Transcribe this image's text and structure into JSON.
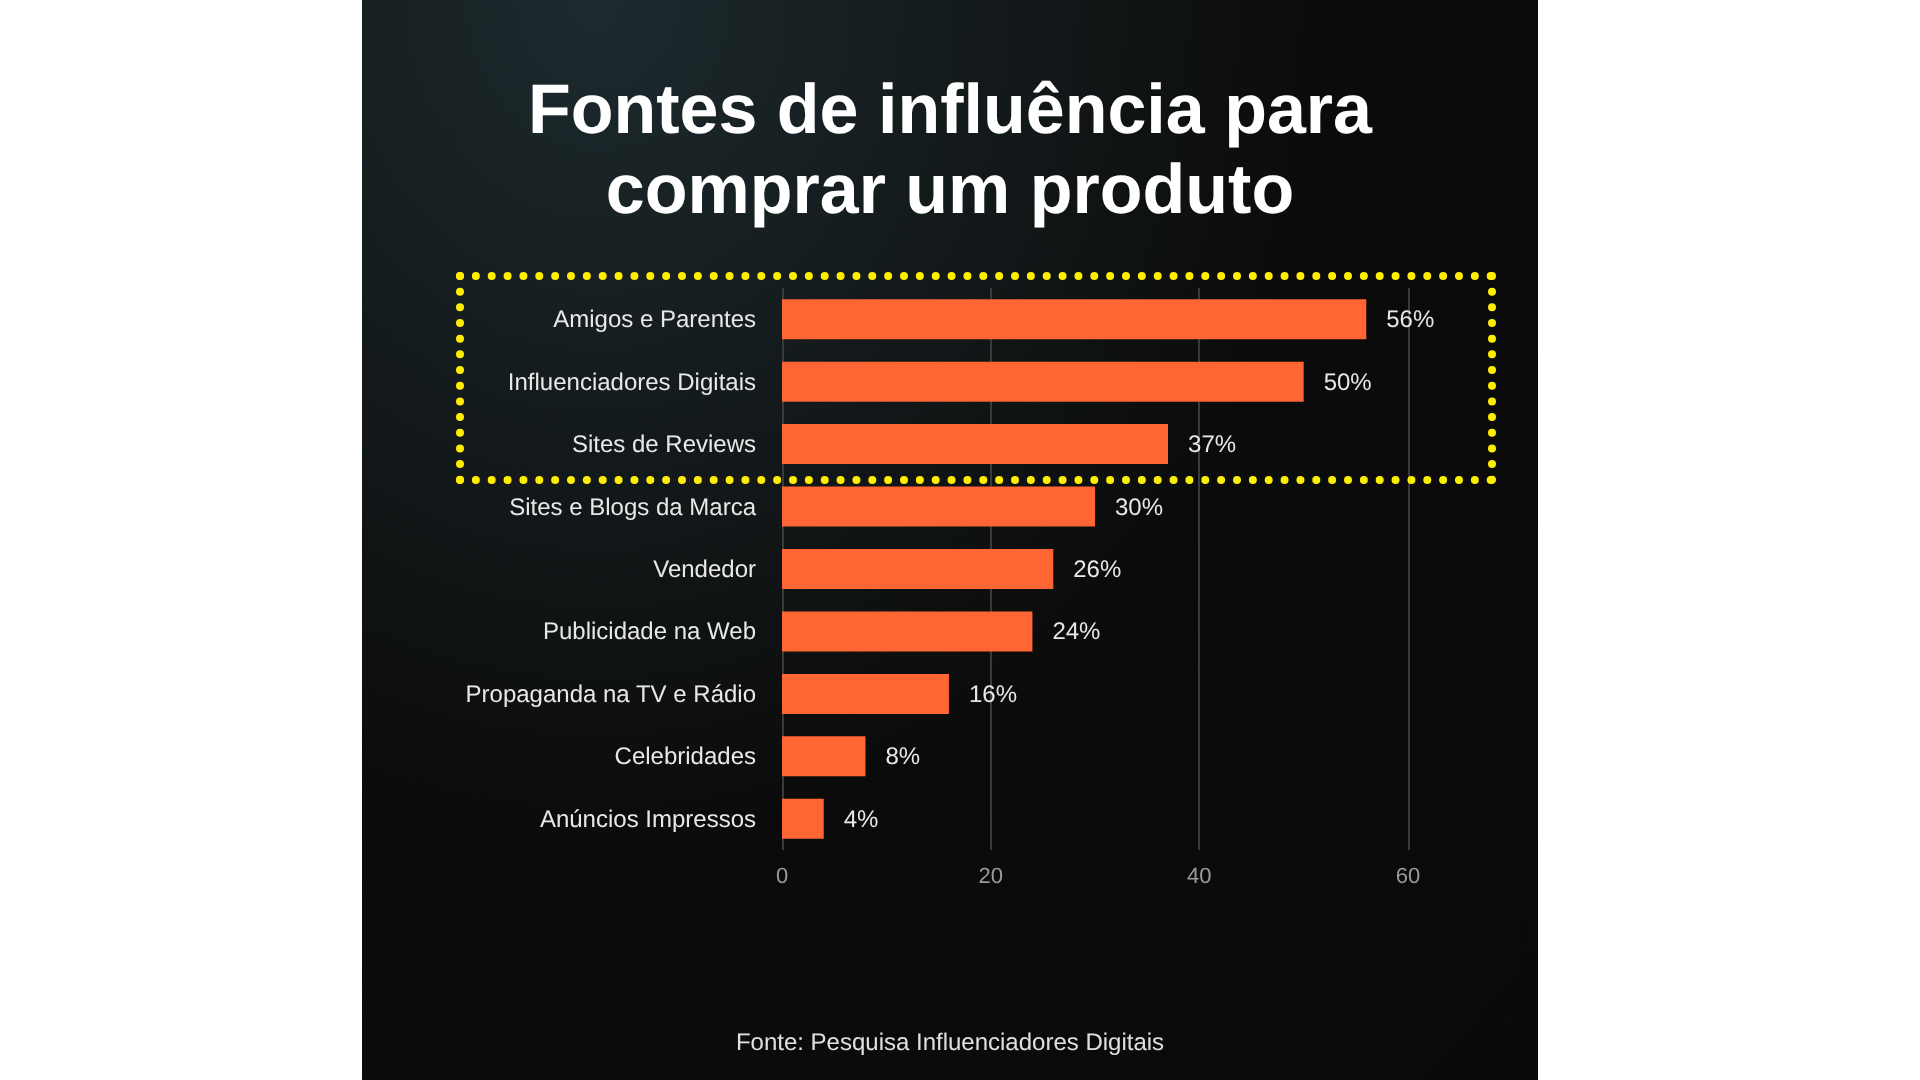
{
  "chart_data": {
    "type": "bar",
    "orientation": "horizontal",
    "title": "Fontes de influência para\ncomprar um produto",
    "categories": [
      "Amigos e Parentes",
      "Influenciadores Digitais",
      "Sites de Reviews",
      "Sites e Blogs da Marca",
      "Vendedor",
      "Publicidade na Web",
      "Propaganda na TV e Rádio",
      "Celebridades",
      "Anúncios Impressos"
    ],
    "values": [
      56,
      50,
      37,
      30,
      26,
      24,
      16,
      8,
      4
    ],
    "value_labels": [
      "56%",
      "50%",
      "37%",
      "30%",
      "26%",
      "24%",
      "16%",
      "8%",
      "4%"
    ],
    "color": "#ff6633",
    "xlim": [
      0,
      60
    ],
    "xticks": [
      0,
      20,
      40,
      60
    ],
    "grid": "x",
    "annotations": [
      "Fonte: Pesquisa Influenciadores Digitais"
    ]
  }
}
